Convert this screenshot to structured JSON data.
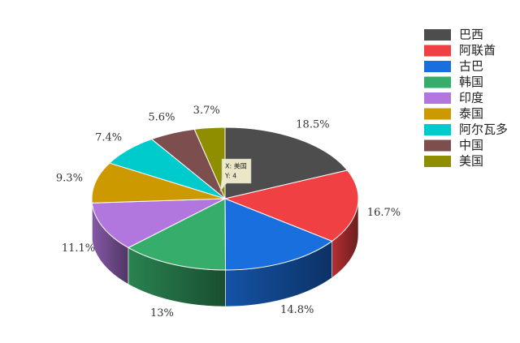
{
  "chart_data": {
    "type": "pie3d",
    "categories": [
      "巴西",
      "阿联酋",
      "古巴",
      "韩国",
      "印度",
      "泰国",
      "阿尔瓦多",
      "中国",
      "美国"
    ],
    "values": [
      18.5,
      16.7,
      14.8,
      13,
      11.1,
      9.3,
      7.4,
      5.6,
      3.7
    ],
    "value_labels": [
      "18.5%",
      "16.7%",
      "14.8%",
      "13%",
      "11.1%",
      "9.3%",
      "7.4%",
      "5.6%",
      "3.7%"
    ],
    "colors": [
      "#4d4d4d",
      "#f04043",
      "#1a6fdf",
      "#37ad6b",
      "#b177de",
      "#cc9900",
      "#00cbcc",
      "#7d4e4e",
      "#8e8e00"
    ],
    "legend": "top-right",
    "tooltip": {
      "lines": [
        "X: 美国",
        "Y: 4"
      ]
    }
  }
}
